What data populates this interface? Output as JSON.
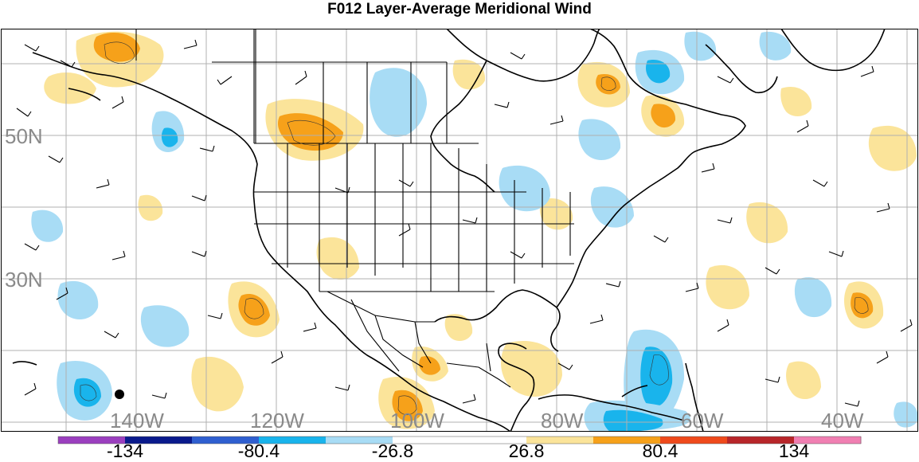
{
  "title": "F012 Layer-Average Meridional Wind",
  "map": {
    "lat_labels": [
      "50N",
      "30N"
    ],
    "lon_labels": [
      "140W",
      "120W",
      "100W",
      "80W",
      "60W",
      "40W"
    ],
    "grid_color": "#b0b0b0",
    "label_color": "#8a8a8a"
  },
  "colorbar": {
    "tick_labels": [
      "-134",
      "-80.4",
      "-26.8",
      "26.8",
      "80.4",
      "134"
    ],
    "colors": [
      "#9b3fbf",
      "#0a1a8c",
      "#2f5fd0",
      "#19b4ec",
      "#a8dcf5",
      "#ffffff",
      "#ffffff",
      "#fbe49a",
      "#f6a11a",
      "#ef4a1c",
      "#b8262a",
      "#f07fb2"
    ]
  },
  "legend_colors": {
    "neg_light": "#a8dcf5",
    "neg_mid": "#19b4ec",
    "pos_light": "#fbe49a",
    "pos_mid": "#f6a11a"
  }
}
